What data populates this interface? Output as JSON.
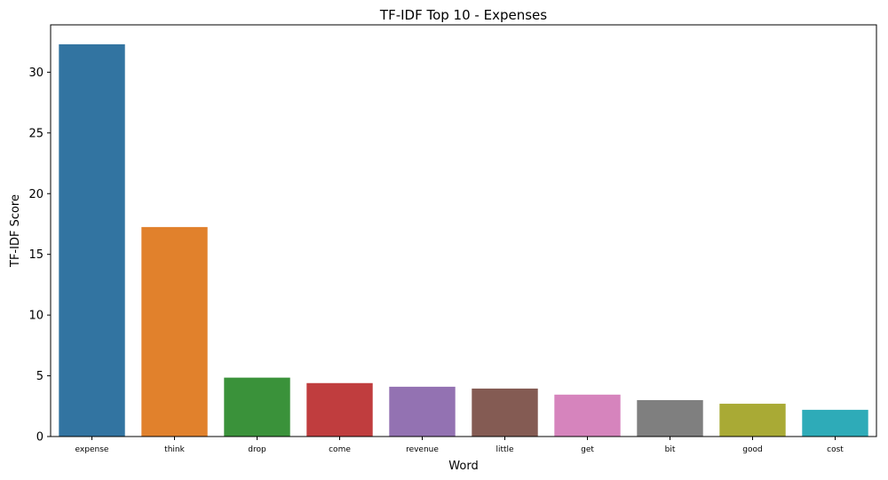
{
  "chart_data": {
    "type": "bar",
    "title": "TF-IDF Top 10 - Expenses",
    "xlabel": "Word",
    "ylabel": "TF-IDF Score",
    "categories": [
      "expense",
      "think",
      "drop",
      "come",
      "revenue",
      "little",
      "get",
      "bit",
      "good",
      "cost"
    ],
    "values": [
      32.3,
      17.25,
      4.85,
      4.4,
      4.1,
      3.95,
      3.45,
      3.0,
      2.7,
      2.2
    ],
    "colors": [
      "#3274a1",
      "#e1812c",
      "#3a923a",
      "#c03d3e",
      "#9372b2",
      "#845b53",
      "#d684bd",
      "#7f7f7f",
      "#a9aa35",
      "#2eabb8"
    ],
    "yticks": [
      0,
      5,
      10,
      15,
      20,
      25,
      30
    ],
    "ylim": [
      0,
      33.9
    ],
    "grid": false,
    "legend": "none"
  }
}
